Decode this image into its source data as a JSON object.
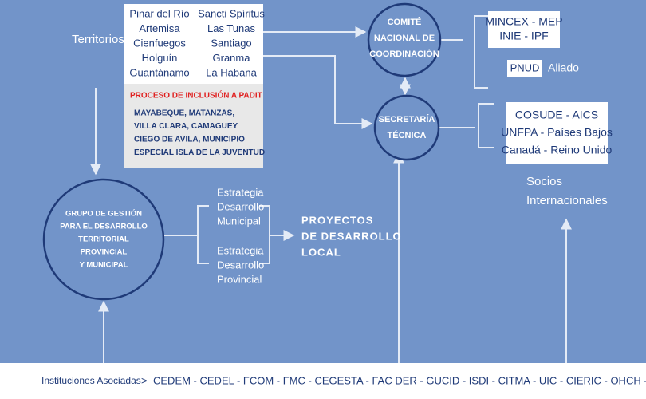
{
  "territorios": "Territorios",
  "provinces": [
    "Pinar del Río",
    "Sancti Spíritus",
    "Artemisa",
    "Las Tunas",
    "Cienfuegos",
    "Santiago",
    "Holguín",
    "Granma",
    "Guantánamo",
    "La Habana"
  ],
  "padit": {
    "title": "PROCESO DE INCLUSIÓN A PADIT",
    "lines": [
      "MAYABEQUE, MATANZAS,",
      "VILLA CLARA, CAMAGUEY",
      "CIEGO DE AVILA, MUNICIPIO",
      "ESPECIAL ISLA DE LA JUVENTUD"
    ]
  },
  "comite": [
    "COMITÉ",
    "NACIONAL DE",
    "COORDINACIÓN"
  ],
  "secretaria": [
    "SECRETARÍA",
    "TÉCNICA"
  ],
  "socios_nac": [
    "MINCEX - MEP",
    "INIE - IPF"
  ],
  "pnud": "PNUD",
  "aliado": "Aliado",
  "socios_int_box": [
    "COSUDE - AICS",
    "UNFPA - Países Bajos",
    "Canadá - Reino Unido"
  ],
  "socios_int": [
    "Socios",
    "Internacionales"
  ],
  "grupo": [
    "GRUPO DE GESTIÓN",
    "PARA EL DESARROLLO",
    "TERRITORIAL",
    "PROVINCIAL",
    "Y MUNICIPAL"
  ],
  "estrategia_mun": [
    "Estrategia",
    "Desarrollo",
    "Municipal"
  ],
  "estrategia_prov": [
    "Estrategia",
    "Desarrollo",
    "Provincial"
  ],
  "proyectos": [
    "PROYECTOS",
    "DE DESARROLLO",
    "LOCAL"
  ],
  "footer": {
    "label": "Instituciones Asociadas",
    "sep": ">",
    "list": "CEDEM - CEDEL - FCOM - FMC - CEGESTA - FAC DER - GUCID - ISDI - CITMA - UIC - CIERIC - OHCH - ANEC"
  }
}
